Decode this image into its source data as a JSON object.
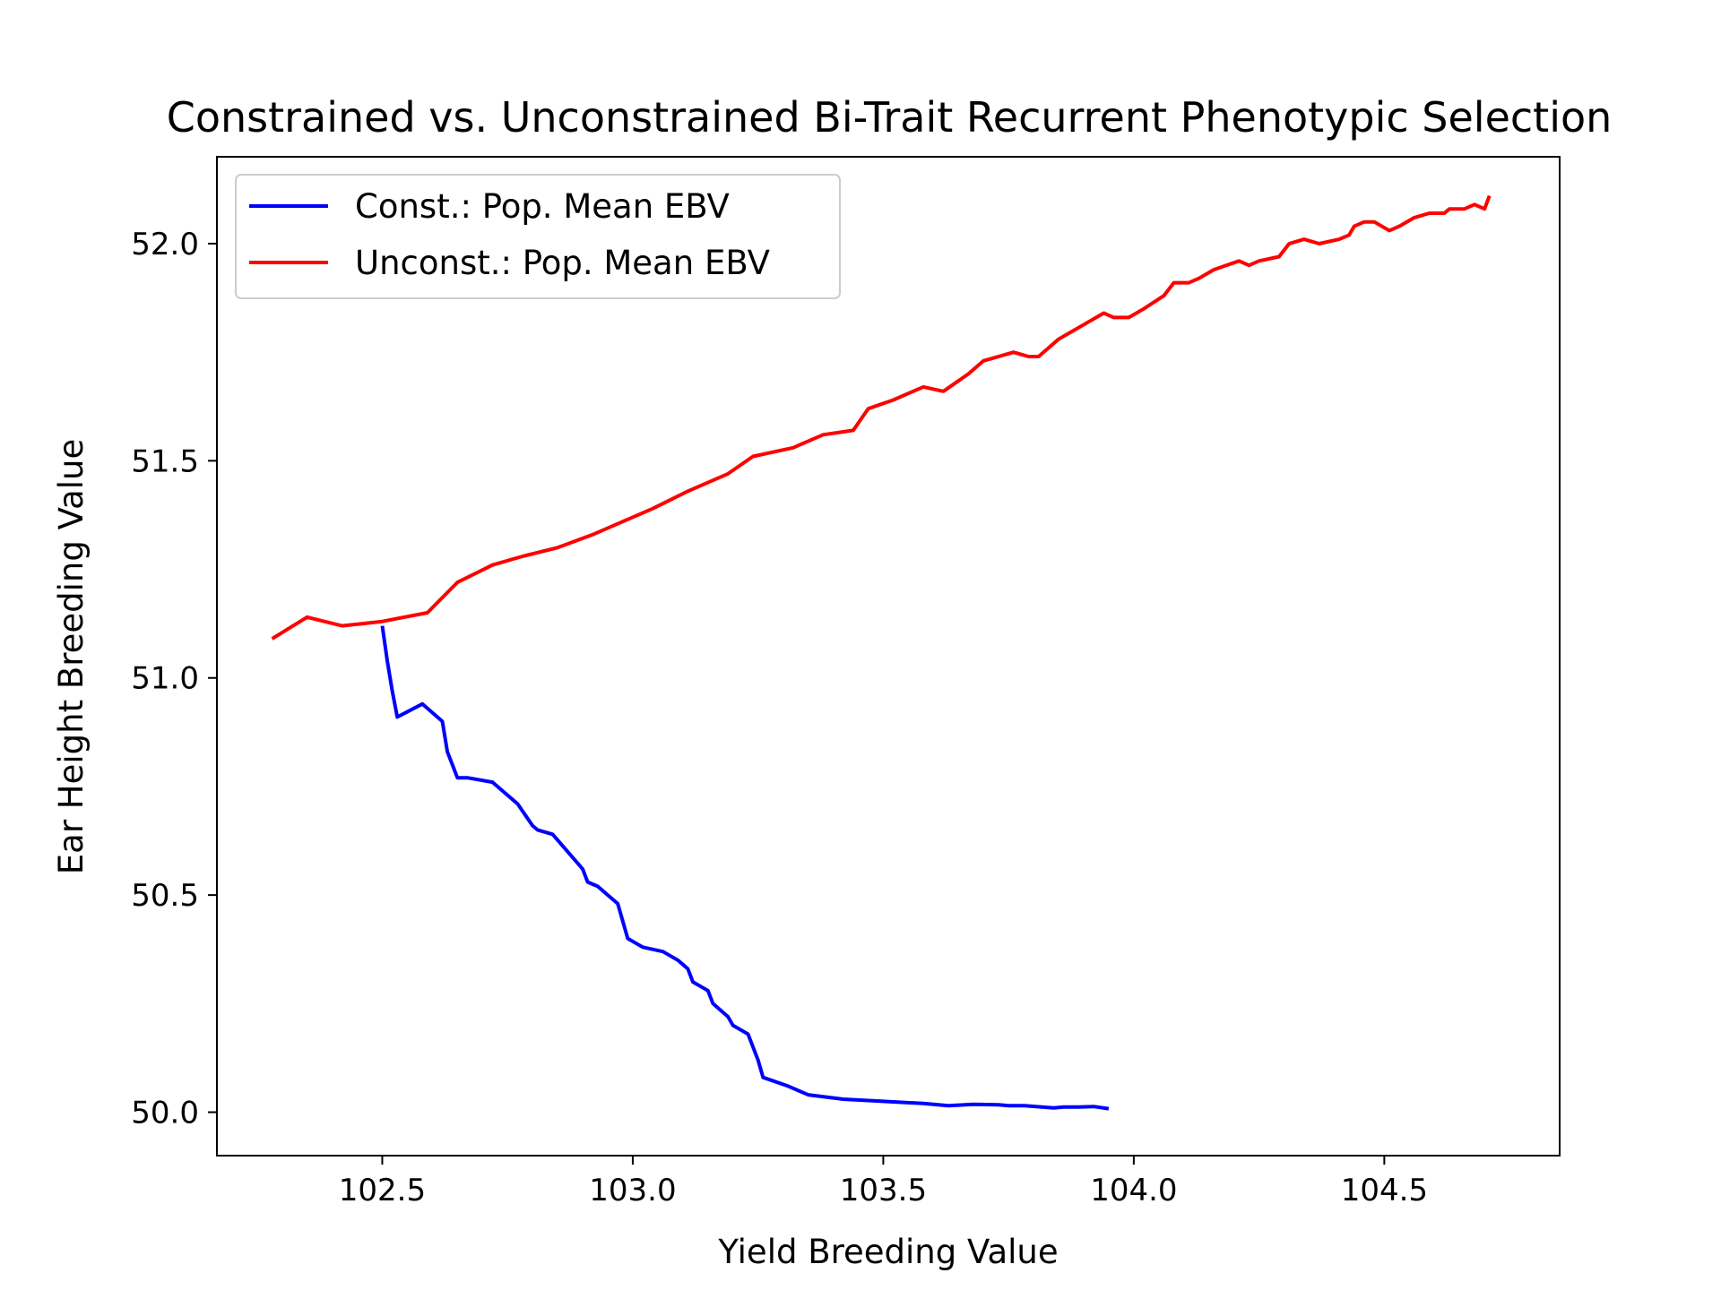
{
  "chart_data": {
    "type": "line",
    "title": "Constrained vs. Unconstrained Bi-Trait Recurrent Phenotypic Selection",
    "xlabel": "Yield Breeding Value",
    "ylabel": "Ear Height Breeding Value",
    "xlim": [
      102.17,
      104.85
    ],
    "ylim": [
      49.9,
      52.2
    ],
    "xticks": [
      102.5,
      103.0,
      103.5,
      104.0,
      104.5
    ],
    "xtick_labels": [
      "102.5",
      "103.0",
      "103.5",
      "104.0",
      "104.5"
    ],
    "yticks": [
      50.0,
      50.5,
      51.0,
      51.5,
      52.0
    ],
    "ytick_labels": [
      "50.0",
      "50.5",
      "51.0",
      "51.5",
      "52.0"
    ],
    "grid": false,
    "legend_position": "top-left",
    "series": [
      {
        "name": "Const.: Pop. Mean EBV",
        "color": "#0000ff",
        "x": [
          102.5,
          102.51,
          102.52,
          102.53,
          102.58,
          102.62,
          102.63,
          102.65,
          102.67,
          102.72,
          102.77,
          102.8,
          102.81,
          102.84,
          102.87,
          102.9,
          102.91,
          102.93,
          102.95,
          102.97,
          102.99,
          103.02,
          103.06,
          103.09,
          103.11,
          103.12,
          103.15,
          103.16,
          103.19,
          103.2,
          103.23,
          103.25,
          103.26,
          103.31,
          103.35,
          103.42,
          103.5,
          103.58,
          103.63,
          103.68,
          103.73,
          103.75,
          103.78,
          103.84,
          103.86,
          103.89,
          103.92,
          103.95
        ],
        "y": [
          51.12,
          51.04,
          50.97,
          50.91,
          50.94,
          50.9,
          50.83,
          50.77,
          50.77,
          50.76,
          50.71,
          50.66,
          50.65,
          50.64,
          50.6,
          50.56,
          50.53,
          50.52,
          50.5,
          50.48,
          50.4,
          50.38,
          50.37,
          50.35,
          50.33,
          50.3,
          50.28,
          50.25,
          50.22,
          50.2,
          50.18,
          50.12,
          50.08,
          50.06,
          50.04,
          50.03,
          50.025,
          50.02,
          50.015,
          50.018,
          50.017,
          50.015,
          50.015,
          50.01,
          50.012,
          50.012,
          50.013,
          50.008
        ]
      },
      {
        "name": "Unconst.: Pop. Mean EBV",
        "color": "#ff0000",
        "x": [
          102.28,
          102.35,
          102.42,
          102.5,
          102.59,
          102.65,
          102.72,
          102.78,
          102.85,
          102.92,
          102.98,
          103.04,
          103.11,
          103.19,
          103.24,
          103.32,
          103.38,
          103.44,
          103.47,
          103.52,
          103.58,
          103.62,
          103.67,
          103.7,
          103.76,
          103.79,
          103.81,
          103.85,
          103.91,
          103.94,
          103.96,
          103.99,
          104.02,
          104.06,
          104.08,
          104.11,
          104.13,
          104.16,
          104.21,
          104.23,
          104.25,
          104.29,
          104.31,
          104.34,
          104.37,
          104.41,
          104.43,
          104.44,
          104.46,
          104.48,
          104.51,
          104.53,
          104.56,
          104.59,
          104.62,
          104.63,
          104.66,
          104.68,
          104.7,
          104.71
        ],
        "y": [
          51.09,
          51.14,
          51.12,
          51.13,
          51.15,
          51.22,
          51.26,
          51.28,
          51.3,
          51.33,
          51.36,
          51.39,
          51.43,
          51.47,
          51.51,
          51.53,
          51.56,
          51.57,
          51.62,
          51.64,
          51.67,
          51.66,
          51.7,
          51.73,
          51.75,
          51.74,
          51.74,
          51.78,
          51.82,
          51.84,
          51.83,
          51.83,
          51.85,
          51.88,
          51.91,
          51.91,
          51.92,
          51.94,
          51.96,
          51.95,
          51.96,
          51.97,
          52.0,
          52.01,
          52.0,
          52.01,
          52.02,
          52.04,
          52.05,
          52.05,
          52.03,
          52.04,
          52.06,
          52.07,
          52.07,
          52.08,
          52.08,
          52.09,
          52.08,
          52.11
        ]
      }
    ]
  }
}
